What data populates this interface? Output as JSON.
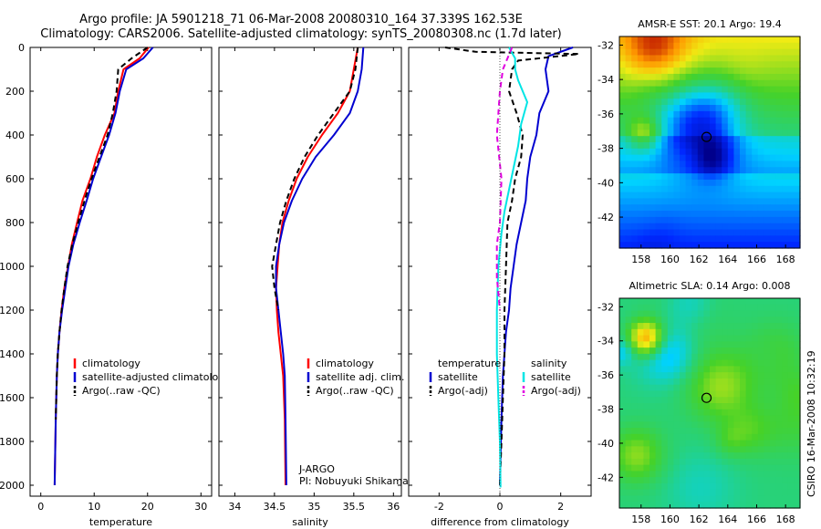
{
  "header": {
    "line1": "Argo profile: JA 5901218_71 06-Mar-2008 20080310_164 37.339S 162.53E",
    "line2": "Climatology: CARS2006. Satellite-adjusted climatology: synTS_20080308.nc (1.7d later)"
  },
  "footer_stamp": "CSIRO 16-Mar-2008 10:32:19",
  "colors": {
    "climatology": "#ff0000",
    "satellite": "#0000d0",
    "argo": "#000000",
    "cyan": "#00e5e5",
    "magenta": "#e000e0"
  },
  "chart_data": [
    {
      "type": "line",
      "panel": "temperature",
      "xlabel": "temperature",
      "xticks": [
        0,
        10,
        20,
        30
      ],
      "xlim": [
        -2,
        32
      ],
      "yticks": [
        0,
        200,
        400,
        600,
        800,
        1000,
        1200,
        1400,
        1600,
        1800,
        2000
      ],
      "ylim": [
        2050,
        0
      ],
      "legend": [
        "climatology",
        "satellite-adjusted climatology",
        "Argo(..raw -QC)"
      ],
      "series": [
        {
          "name": "climatology",
          "color": "#ff0000",
          "dash": "",
          "x": [
            20.2,
            18.5,
            15.5,
            14.5,
            13.8,
            12.0,
            10.5,
            9.3,
            7.8,
            6.8,
            5.8,
            5.1,
            4.4,
            3.9,
            3.5,
            3.2,
            3.0,
            2.8,
            2.6
          ],
          "y": [
            0,
            50,
            100,
            200,
            300,
            400,
            500,
            600,
            700,
            800,
            900,
            1000,
            1100,
            1200,
            1300,
            1400,
            1500,
            1700,
            2000
          ]
        },
        {
          "name": "satellite-adjusted climatology",
          "color": "#0000d0",
          "dash": "",
          "x": [
            21.0,
            19.2,
            16.0,
            14.8,
            14.0,
            12.8,
            11.3,
            9.8,
            8.6,
            7.3,
            6.1,
            5.2,
            4.6,
            4.0,
            3.5,
            3.2,
            3.0,
            2.8,
            2.6
          ],
          "y": [
            0,
            50,
            100,
            200,
            300,
            400,
            500,
            600,
            700,
            800,
            900,
            1000,
            1100,
            1200,
            1300,
            1400,
            1500,
            1700,
            2000
          ]
        },
        {
          "name": "Argo(..raw -QC)",
          "color": "#000000",
          "dash": "6,4",
          "x": [
            20.0,
            17.0,
            14.5,
            14.2,
            13.5,
            12.5,
            11.0,
            9.5,
            8.2,
            7.0,
            5.9,
            5.0,
            4.4,
            3.9,
            3.5,
            3.2,
            3.0,
            2.8
          ],
          "y": [
            0,
            50,
            100,
            200,
            300,
            400,
            500,
            600,
            700,
            800,
            900,
            1000,
            1100,
            1200,
            1300,
            1400,
            1500,
            1700
          ]
        }
      ]
    },
    {
      "type": "line",
      "panel": "salinity",
      "xlabel": "salinity",
      "xticks": [
        34,
        34.5,
        35,
        35.5,
        36
      ],
      "xlim": [
        33.8,
        36.1
      ],
      "ylim": [
        2050,
        0
      ],
      "legend": [
        "climatology",
        "satellite adj. clim.",
        "Argo(..raw -QC)"
      ],
      "annotation": [
        "J-ARGO",
        "PI: Nobuyuki Shikama"
      ],
      "series": [
        {
          "name": "climatology",
          "color": "#ff0000",
          "dash": "",
          "x": [
            35.55,
            35.5,
            35.45,
            35.3,
            35.1,
            34.92,
            34.78,
            34.68,
            34.6,
            34.56,
            34.54,
            34.52,
            34.53,
            34.55,
            34.58,
            34.61,
            34.63,
            34.64
          ],
          "y": [
            0,
            100,
            200,
            300,
            400,
            500,
            600,
            700,
            800,
            900,
            1000,
            1100,
            1200,
            1300,
            1400,
            1500,
            1700,
            2000
          ]
        },
        {
          "name": "satellite adj. clim.",
          "color": "#0000d0",
          "dash": "",
          "x": [
            35.62,
            35.6,
            35.55,
            35.45,
            35.25,
            35.02,
            34.85,
            34.72,
            34.62,
            34.56,
            34.52,
            34.52,
            34.55,
            34.58,
            34.61,
            34.63,
            34.64,
            34.65
          ],
          "y": [
            0,
            100,
            200,
            300,
            400,
            500,
            600,
            700,
            800,
            900,
            1000,
            1100,
            1200,
            1300,
            1400,
            1500,
            1700,
            2000
          ]
        },
        {
          "name": "Argo(..raw -QC)",
          "color": "#000000",
          "dash": "6,4",
          "x": [
            35.55,
            35.52,
            35.45,
            35.25,
            35.05,
            34.88,
            34.75,
            34.65,
            34.57,
            34.52,
            34.47,
            34.5,
            34.55
          ],
          "y": [
            0,
            100,
            200,
            300,
            400,
            500,
            600,
            700,
            800,
            900,
            1000,
            1100,
            1200
          ]
        }
      ]
    },
    {
      "type": "line",
      "panel": "difference",
      "xlabel": "difference from climatology",
      "xticks": [
        -2,
        0,
        2
      ],
      "xlim": [
        -3,
        3
      ],
      "ylim": [
        2050,
        0
      ],
      "legend_left_title": "temperature",
      "legend_left": [
        "satellite",
        "Argo(-adj)"
      ],
      "legend_right_title": "salinity",
      "legend_right": [
        "satellite",
        "Argo(-adj)"
      ],
      "series": [
        {
          "name": "temperature satellite",
          "color": "#0000d0",
          "dash": "",
          "x": [
            2.4,
            1.6,
            1.5,
            1.6,
            1.3,
            1.2,
            1.0,
            0.9,
            0.85,
            0.7,
            0.55,
            0.45,
            0.35,
            0.3,
            0.2,
            0.15,
            0.1,
            0.05,
            0.0
          ],
          "y": [
            0,
            40,
            100,
            200,
            300,
            400,
            500,
            600,
            700,
            800,
            900,
            1000,
            1100,
            1200,
            1300,
            1400,
            1500,
            1700,
            2000
          ]
        },
        {
          "name": "temperature Argo(-adj)",
          "color": "#000000",
          "dash": "6,4",
          "x": [
            -1.8,
            -0.8,
            2.6,
            0.6,
            0.4,
            0.3,
            0.55,
            0.75,
            0.7,
            0.5,
            0.4,
            0.25,
            0.2,
            0.15,
            0.15,
            0.1,
            0.05,
            0.0
          ],
          "y": [
            0,
            20,
            30,
            60,
            100,
            200,
            300,
            400,
            500,
            600,
            700,
            800,
            1000,
            1200,
            1400,
            1600,
            1800,
            2000
          ]
        },
        {
          "name": "salinity satellite",
          "color": "#00e5e5",
          "dash": "",
          "x": [
            0.3,
            0.5,
            0.5,
            0.6,
            0.9,
            0.7,
            0.6,
            0.45,
            0.3,
            0.15,
            0.05,
            -0.05,
            -0.1,
            -0.1,
            -0.05,
            0.0,
            0.02,
            0.02
          ],
          "y": [
            0,
            50,
            100,
            150,
            250,
            350,
            450,
            550,
            650,
            750,
            850,
            1000,
            1200,
            1400,
            1600,
            1800,
            2000,
            2010
          ]
        },
        {
          "name": "salinity Argo(-adj)",
          "color": "#e000e0",
          "dash": "6,4",
          "x": [
            0.4,
            0.1,
            0.0,
            -0.1,
            0.05,
            0.0,
            -0.1,
            -0.1,
            0.0
          ],
          "y": [
            0,
            100,
            200,
            400,
            600,
            800,
            900,
            1050,
            1200
          ]
        }
      ]
    },
    {
      "type": "heatmap",
      "panel": "sst-map",
      "title": "AMSR-E SST: 20.1  Argo: 19.4",
      "xticks": [
        158,
        160,
        162,
        164,
        166,
        168
      ],
      "yticks": [
        -32,
        -34,
        -36,
        -38,
        -40,
        -42
      ],
      "xlim": [
        156.5,
        169
      ],
      "ylim": [
        -43.8,
        -31.5
      ],
      "marker": {
        "lon": 162.53,
        "lat": -37.34
      }
    },
    {
      "type": "heatmap",
      "panel": "sla-map",
      "title": "Altimetric SLA: 0.14  Argo: 0.008",
      "xticks": [
        158,
        160,
        162,
        164,
        166,
        168
      ],
      "yticks": [
        -32,
        -34,
        -36,
        -38,
        -40,
        -42
      ],
      "xlim": [
        156.5,
        169
      ],
      "ylim": [
        -43.8,
        -31.5
      ],
      "marker": {
        "lon": 162.53,
        "lat": -37.34
      }
    }
  ]
}
